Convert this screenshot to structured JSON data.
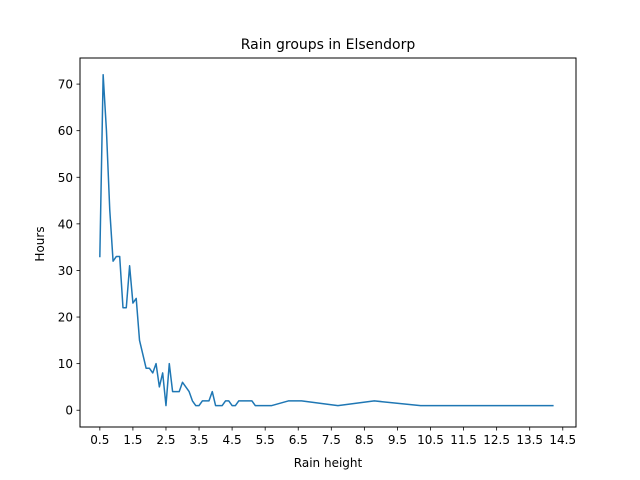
{
  "chart_data": {
    "type": "line",
    "title": "Rain groups in Elsendorp",
    "xlabel": "Rain height",
    "ylabel": "Hours",
    "xlim": [
      -0.1,
      14.9
    ],
    "ylim": [
      -3.6,
      75.6
    ],
    "x_ticks": [
      0.5,
      1.5,
      2.5,
      3.5,
      4.5,
      5.5,
      6.5,
      7.5,
      8.5,
      9.5,
      10.5,
      11.5,
      12.5,
      13.5,
      14.5
    ],
    "x_tick_labels": [
      "0.5",
      "1.5",
      "2.5",
      "3.5",
      "4.5",
      "5.5",
      "6.5",
      "7.5",
      "8.5",
      "9.5",
      "10.5",
      "11.5",
      "12.5",
      "13.5",
      "14.5"
    ],
    "y_ticks": [
      0,
      10,
      20,
      30,
      40,
      50,
      60,
      70
    ],
    "y_tick_labels": [
      "0",
      "10",
      "20",
      "30",
      "40",
      "50",
      "60",
      "70"
    ],
    "grid": false,
    "line_color": "#1f77b4",
    "series": [
      {
        "x": [
          0.5,
          0.6,
          0.7,
          0.8,
          0.9,
          1.0,
          1.1,
          1.2,
          1.3,
          1.4,
          1.5,
          1.6,
          1.7,
          1.8,
          1.9,
          2.0,
          2.1,
          2.2,
          2.3,
          2.4,
          2.5,
          2.6,
          2.7,
          2.8,
          2.9,
          3.0,
          3.1,
          3.2,
          3.3,
          3.4,
          3.5,
          3.6,
          3.7,
          3.8,
          3.9,
          4.0,
          4.1,
          4.2,
          4.3,
          4.4,
          4.5,
          4.6,
          4.7,
          4.8,
          4.9,
          5.0,
          5.1,
          5.2,
          5.4,
          5.7,
          6.2,
          6.6,
          7.7,
          8.8,
          10.2,
          14.2
        ],
        "y": [
          33,
          72,
          60,
          43,
          32,
          33,
          33,
          22,
          22,
          31,
          23,
          24,
          15,
          12,
          9,
          9,
          8,
          10,
          5,
          8,
          1,
          10,
          4,
          4,
          4,
          6,
          5,
          4,
          2,
          1,
          1,
          2,
          2,
          2,
          4,
          1,
          1,
          1,
          2,
          2,
          1,
          1,
          2,
          2,
          2,
          2,
          2,
          1,
          1,
          1,
          2,
          2,
          1,
          2,
          1,
          1
        ]
      }
    ]
  }
}
